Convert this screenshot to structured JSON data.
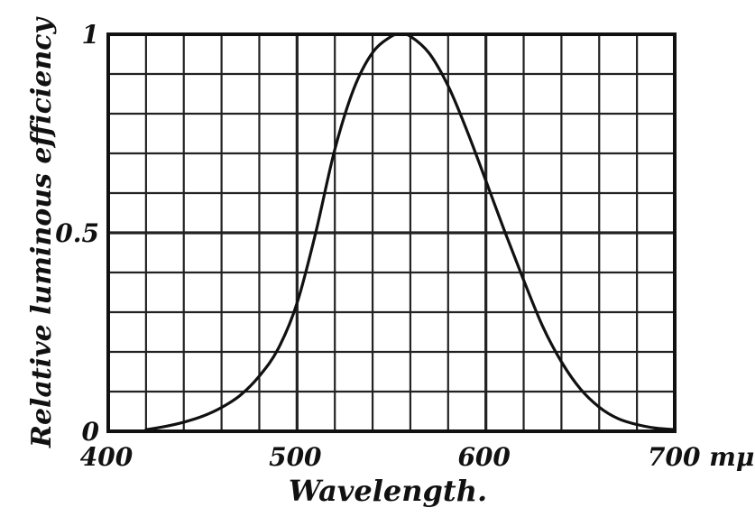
{
  "chart_data": {
    "type": "line",
    "xlabel": "Wavelength.",
    "ylabel": "Relative luminous efficiency",
    "xlim": [
      400,
      700
    ],
    "ylim": [
      0,
      1
    ],
    "x_ticks": [
      "400",
      "500",
      "600",
      "700 mμ"
    ],
    "y_ticks": [
      "0",
      "0.5",
      "1"
    ],
    "grid": true,
    "series": [
      {
        "x": [
          420,
          430,
          440,
          450,
          460,
          470,
          480,
          490,
          500,
          510,
          520,
          530,
          540,
          550,
          555,
          560,
          570,
          580,
          590,
          600,
          610,
          620,
          630,
          640,
          650,
          660,
          670,
          680,
          690,
          700
        ],
        "values": [
          0.004,
          0.012,
          0.023,
          0.038,
          0.06,
          0.091,
          0.139,
          0.208,
          0.323,
          0.503,
          0.71,
          0.862,
          0.954,
          0.995,
          1.0,
          0.995,
          0.952,
          0.87,
          0.757,
          0.631,
          0.503,
          0.381,
          0.265,
          0.175,
          0.107,
          0.061,
          0.032,
          0.017,
          0.008,
          0.004
        ]
      }
    ]
  }
}
